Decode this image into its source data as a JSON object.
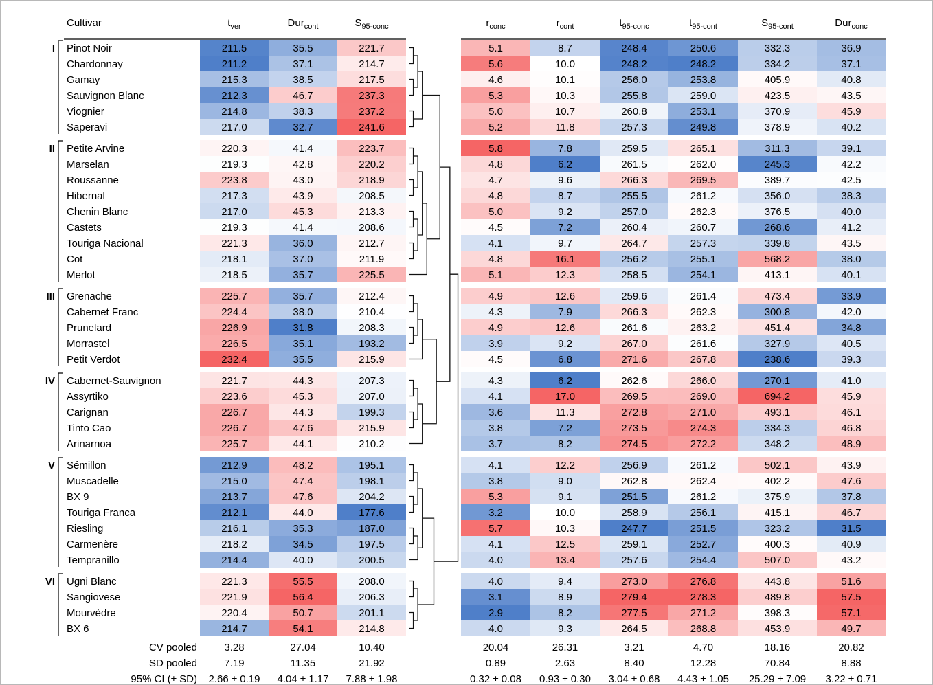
{
  "chart_data": {
    "type": "heatmap",
    "header_label": "Cultivar",
    "left_columns": [
      {
        "base": "t",
        "sub": "ver"
      },
      {
        "base": "Dur",
        "sub": "cont"
      },
      {
        "base": "S",
        "sub": "95-conc"
      }
    ],
    "right_columns": [
      {
        "base": "r",
        "sub": "conc"
      },
      {
        "base": "r",
        "sub": "cont"
      },
      {
        "base": "t",
        "sub": "95-conc"
      },
      {
        "base": "t",
        "sub": "95-cont"
      },
      {
        "base": "S",
        "sub": "95-cont"
      },
      {
        "base": "Dur",
        "sub": "conc"
      }
    ],
    "colors": {
      "low": "#4f7fc9",
      "mid": "#ffffff",
      "high": "#f56565"
    },
    "groups": [
      {
        "label": "I",
        "rows": [
          {
            "cultivar": "Pinot Noir",
            "values": [
              "211.5",
              "35.5",
              "221.7",
              "5.1",
              "8.7",
              "248.4",
              "250.6",
              "332.3",
              "36.9"
            ]
          },
          {
            "cultivar": "Chardonnay",
            "values": [
              "211.2",
              "37.1",
              "214.7",
              "5.6",
              "10.0",
              "248.2",
              "248.2",
              "334.2",
              "37.1"
            ]
          },
          {
            "cultivar": "Gamay",
            "values": [
              "215.3",
              "38.5",
              "217.5",
              "4.6",
              "10.1",
              "256.0",
              "253.8",
              "405.9",
              "40.8"
            ]
          },
          {
            "cultivar": "Sauvignon Blanc",
            "values": [
              "212.3",
              "46.7",
              "237.3",
              "5.3",
              "10.3",
              "255.8",
              "259.0",
              "423.5",
              "43.5"
            ]
          },
          {
            "cultivar": "Viognier",
            "values": [
              "214.8",
              "38.3",
              "237.2",
              "5.0",
              "10.7",
              "260.8",
              "253.1",
              "370.9",
              "45.9"
            ]
          },
          {
            "cultivar": "Saperavi",
            "values": [
              "217.0",
              "32.7",
              "241.6",
              "5.2",
              "11.8",
              "257.3",
              "249.8",
              "378.9",
              "40.2"
            ]
          }
        ]
      },
      {
        "label": "II",
        "rows": [
          {
            "cultivar": "Petite Arvine",
            "values": [
              "220.3",
              "41.4",
              "223.7",
              "5.8",
              "7.8",
              "259.5",
              "265.1",
              "311.3",
              "39.1"
            ]
          },
          {
            "cultivar": "Marselan",
            "values": [
              "219.3",
              "42.8",
              "220.2",
              "4.8",
              "6.2",
              "261.5",
              "262.0",
              "245.3",
              "42.2"
            ]
          },
          {
            "cultivar": "Roussanne",
            "values": [
              "223.8",
              "43.0",
              "218.9",
              "4.7",
              "9.6",
              "266.3",
              "269.5",
              "389.7",
              "42.5"
            ]
          },
          {
            "cultivar": "Hibernal",
            "values": [
              "217.3",
              "43.9",
              "208.5",
              "4.8",
              "8.7",
              "255.5",
              "261.2",
              "356.0",
              "38.3"
            ]
          },
          {
            "cultivar": "Chenin Blanc",
            "values": [
              "217.0",
              "45.3",
              "213.3",
              "5.0",
              "9.2",
              "257.0",
              "262.3",
              "376.5",
              "40.0"
            ]
          },
          {
            "cultivar": "Castets",
            "values": [
              "219.3",
              "41.4",
              "208.6",
              "4.5",
              "7.2",
              "260.4",
              "260.7",
              "268.6",
              "41.2"
            ]
          },
          {
            "cultivar": "Touriga Nacional",
            "values": [
              "221.3",
              "36.0",
              "212.7",
              "4.1",
              "9.7",
              "264.7",
              "257.3",
              "339.8",
              "43.5"
            ]
          },
          {
            "cultivar": "Cot",
            "values": [
              "218.1",
              "37.0",
              "211.9",
              "4.8",
              "16.1",
              "256.2",
              "255.1",
              "568.2",
              "38.0"
            ]
          },
          {
            "cultivar": "Merlot",
            "values": [
              "218.5",
              "35.7",
              "225.5",
              "5.1",
              "12.3",
              "258.5",
              "254.1",
              "413.1",
              "40.1"
            ]
          }
        ]
      },
      {
        "label": "III",
        "rows": [
          {
            "cultivar": "Grenache",
            "values": [
              "225.7",
              "35.7",
              "212.4",
              "4.9",
              "12.6",
              "259.6",
              "261.4",
              "473.4",
              "33.9"
            ]
          },
          {
            "cultivar": "Cabernet Franc",
            "values": [
              "224.4",
              "38.0",
              "210.4",
              "4.3",
              "7.9",
              "266.3",
              "262.3",
              "300.8",
              "42.0"
            ]
          },
          {
            "cultivar": "Prunelard",
            "values": [
              "226.9",
              "31.8",
              "208.3",
              "4.9",
              "12.6",
              "261.6",
              "263.2",
              "451.4",
              "34.8"
            ]
          },
          {
            "cultivar": "Morrastel",
            "values": [
              "226.5",
              "35.1",
              "193.2",
              "3.9",
              "9.2",
              "267.0",
              "261.6",
              "327.9",
              "40.5"
            ]
          },
          {
            "cultivar": "Petit Verdot",
            "values": [
              "232.4",
              "35.5",
              "215.9",
              "4.5",
              "6.8",
              "271.6",
              "267.8",
              "238.6",
              "39.3"
            ]
          }
        ]
      },
      {
        "label": "IV",
        "rows": [
          {
            "cultivar": "Cabernet-Sauvignon",
            "values": [
              "221.7",
              "44.3",
              "207.3",
              "4.3",
              "6.2",
              "262.6",
              "266.0",
              "270.1",
              "41.0"
            ]
          },
          {
            "cultivar": "Assyrtiko",
            "values": [
              "223.6",
              "45.3",
              "207.0",
              "4.1",
              "17.0",
              "269.5",
              "269.0",
              "694.2",
              "45.9"
            ]
          },
          {
            "cultivar": "Carignan",
            "values": [
              "226.7",
              "44.3",
              "199.3",
              "3.6",
              "11.3",
              "272.8",
              "271.0",
              "493.1",
              "46.1"
            ]
          },
          {
            "cultivar": "Tinto Cao",
            "values": [
              "226.7",
              "47.6",
              "215.9",
              "3.8",
              "7.2",
              "273.5",
              "274.3",
              "334.3",
              "46.8"
            ]
          },
          {
            "cultivar": "Arinarnoa",
            "values": [
              "225.7",
              "44.1",
              "210.2",
              "3.7",
              "8.2",
              "274.5",
              "272.2",
              "348.2",
              "48.9"
            ]
          }
        ]
      },
      {
        "label": "V",
        "rows": [
          {
            "cultivar": "Sémillon",
            "values": [
              "212.9",
              "48.2",
              "195.1",
              "4.1",
              "12.2",
              "256.9",
              "261.2",
              "502.1",
              "43.9"
            ]
          },
          {
            "cultivar": "Muscadelle",
            "values": [
              "215.0",
              "47.4",
              "198.1",
              "3.8",
              "9.0",
              "262.8",
              "262.4",
              "402.2",
              "47.6"
            ]
          },
          {
            "cultivar": "BX 9",
            "values": [
              "213.7",
              "47.6",
              "204.2",
              "5.3",
              "9.1",
              "251.5",
              "261.2",
              "375.9",
              "37.8"
            ]
          },
          {
            "cultivar": "Touriga Franca",
            "values": [
              "212.1",
              "44.0",
              "177.6",
              "3.2",
              "10.0",
              "258.9",
              "256.1",
              "415.1",
              "46.7"
            ]
          },
          {
            "cultivar": "Riesling",
            "values": [
              "216.1",
              "35.3",
              "187.0",
              "5.7",
              "10.3",
              "247.7",
              "251.5",
              "323.2",
              "31.5"
            ]
          },
          {
            "cultivar": "Carmenère",
            "values": [
              "218.2",
              "34.5",
              "197.5",
              "4.1",
              "12.5",
              "259.1",
              "252.7",
              "400.3",
              "40.9"
            ]
          },
          {
            "cultivar": "Tempranillo",
            "values": [
              "214.4",
              "40.0",
              "200.5",
              "4.0",
              "13.4",
              "257.6",
              "254.4",
              "507.0",
              "43.2"
            ]
          }
        ]
      },
      {
        "label": "VI",
        "rows": [
          {
            "cultivar": "Ugni Blanc",
            "values": [
              "221.3",
              "55.5",
              "208.0",
              "4.0",
              "9.4",
              "273.0",
              "276.8",
              "443.8",
              "51.6"
            ]
          },
          {
            "cultivar": "Sangiovese",
            "values": [
              "221.9",
              "56.4",
              "206.3",
              "3.1",
              "8.9",
              "279.4",
              "278.3",
              "489.8",
              "57.5"
            ]
          },
          {
            "cultivar": "Mourvèdre",
            "values": [
              "220.4",
              "50.7",
              "201.1",
              "2.9",
              "8.2",
              "277.5",
              "271.2",
              "398.3",
              "57.1"
            ]
          },
          {
            "cultivar": "BX 6",
            "values": [
              "214.7",
              "54.1",
              "214.8",
              "4.0",
              "9.3",
              "264.5",
              "268.8",
              "453.9",
              "49.7"
            ]
          }
        ]
      }
    ],
    "summary": [
      {
        "label": "CV pooled",
        "values": [
          "3.28",
          "27.04",
          "10.40",
          "20.04",
          "26.31",
          "3.21",
          "4.70",
          "18.16",
          "20.82"
        ]
      },
      {
        "label": "SD pooled",
        "values": [
          "7.19",
          "11.35",
          "21.92",
          "0.89",
          "2.63",
          "8.40",
          "12.28",
          "70.84",
          "8.88"
        ]
      },
      {
        "label": "95% CI (± SD)",
        "values": [
          "2.66 ± 0.19",
          "4.04 ± 1.17",
          "7.88 ± 1.98",
          "0.32 ± 0.08",
          "0.93 ± 0.30",
          "3.04 ± 0.68",
          "4.43 ± 1.05",
          "25.29 ± 7.09",
          "3.22 ± 0.71"
        ]
      }
    ]
  }
}
